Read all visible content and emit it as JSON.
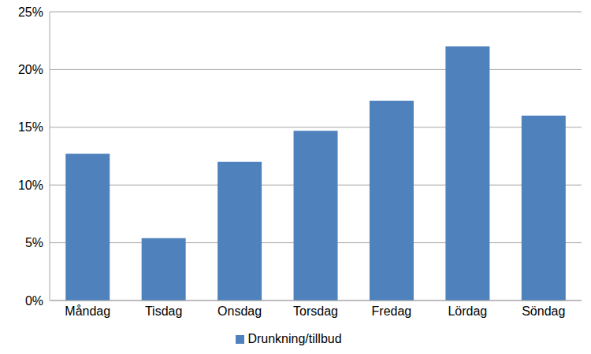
{
  "chart_data": {
    "type": "bar",
    "categories": [
      "Måndag",
      "Tisdag",
      "Onsdag",
      "Torsdag",
      "Fredag",
      "Lördag",
      "Söndag"
    ],
    "series": [
      {
        "name": "Drunkning/tillbud",
        "color": "#4f81bd",
        "values": [
          12.7,
          5.4,
          12.0,
          14.7,
          17.3,
          22.0,
          16.0
        ]
      }
    ],
    "ylim": [
      0,
      25
    ],
    "yticks": [
      {
        "value": 0,
        "label": "0%"
      },
      {
        "value": 5,
        "label": "5%"
      },
      {
        "value": 10,
        "label": "10%"
      },
      {
        "value": 15,
        "label": "15%"
      },
      {
        "value": 20,
        "label": "20%"
      },
      {
        "value": 25,
        "label": "25%"
      }
    ],
    "grid": true,
    "legend": "bottom"
  }
}
